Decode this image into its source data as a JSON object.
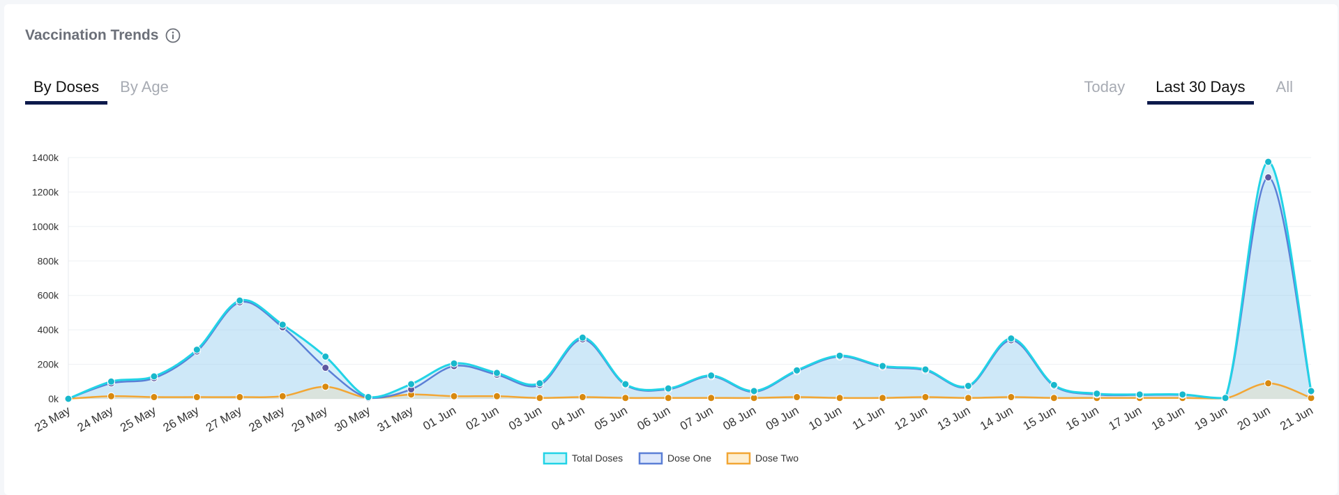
{
  "header": {
    "title": "Vaccination Trends",
    "info_icon": "info-icon"
  },
  "tabs_left": [
    {
      "label": "By Doses",
      "active": true
    },
    {
      "label": "By Age",
      "active": false
    }
  ],
  "tabs_right": [
    {
      "label": "Today",
      "active": false
    },
    {
      "label": "Last 30 Days",
      "active": true
    },
    {
      "label": "All",
      "active": false
    }
  ],
  "colors": {
    "total": "#22d3e6",
    "dose_one": "#5b7fd6",
    "dose_two": "#f2a634",
    "tab_underline": "#0d1a4b"
  },
  "chart_data": {
    "type": "area",
    "title": "",
    "xlabel": "",
    "ylabel": "",
    "ylim": [
      0,
      1400000
    ],
    "yticks": [
      "0k",
      "200k",
      "400k",
      "600k",
      "800k",
      "1000k",
      "1200k",
      "1400k"
    ],
    "grid": true,
    "legend_position": "bottom-center",
    "x": [
      "23 May",
      "24 May",
      "25 May",
      "26 May",
      "27 May",
      "28 May",
      "29 May",
      "30 May",
      "31 May",
      "01 Jun",
      "02 Jun",
      "03 Jun",
      "04 Jun",
      "05 Jun",
      "06 Jun",
      "07 Jun",
      "08 Jun",
      "09 Jun",
      "10 Jun",
      "11 Jun",
      "12 Jun",
      "13 Jun",
      "14 Jun",
      "15 Jun",
      "16 Jun",
      "17 Jun",
      "18 Jun",
      "19 Jun",
      "20 Jun",
      "21 Jun"
    ],
    "series": [
      {
        "name": "Total Doses",
        "values": [
          0,
          100000,
          130000,
          285000,
          570000,
          430000,
          245000,
          10000,
          85000,
          205000,
          150000,
          90000,
          355000,
          85000,
          60000,
          135000,
          45000,
          165000,
          250000,
          190000,
          170000,
          75000,
          350000,
          80000,
          30000,
          25000,
          25000,
          5000,
          1375000,
          45000
        ]
      },
      {
        "name": "Dose One",
        "values": [
          0,
          90000,
          120000,
          275000,
          560000,
          415000,
          180000,
          5000,
          55000,
          190000,
          140000,
          80000,
          345000,
          80000,
          55000,
          130000,
          40000,
          160000,
          245000,
          185000,
          165000,
          70000,
          340000,
          75000,
          25000,
          22000,
          22000,
          3000,
          1285000,
          40000
        ]
      },
      {
        "name": "Dose Two",
        "values": [
          0,
          15000,
          10000,
          10000,
          10000,
          15000,
          70000,
          5000,
          25000,
          15000,
          15000,
          5000,
          10000,
          5000,
          5000,
          5000,
          5000,
          10000,
          5000,
          5000,
          10000,
          5000,
          10000,
          5000,
          5000,
          5000,
          5000,
          3000,
          90000,
          5000
        ]
      }
    ]
  }
}
